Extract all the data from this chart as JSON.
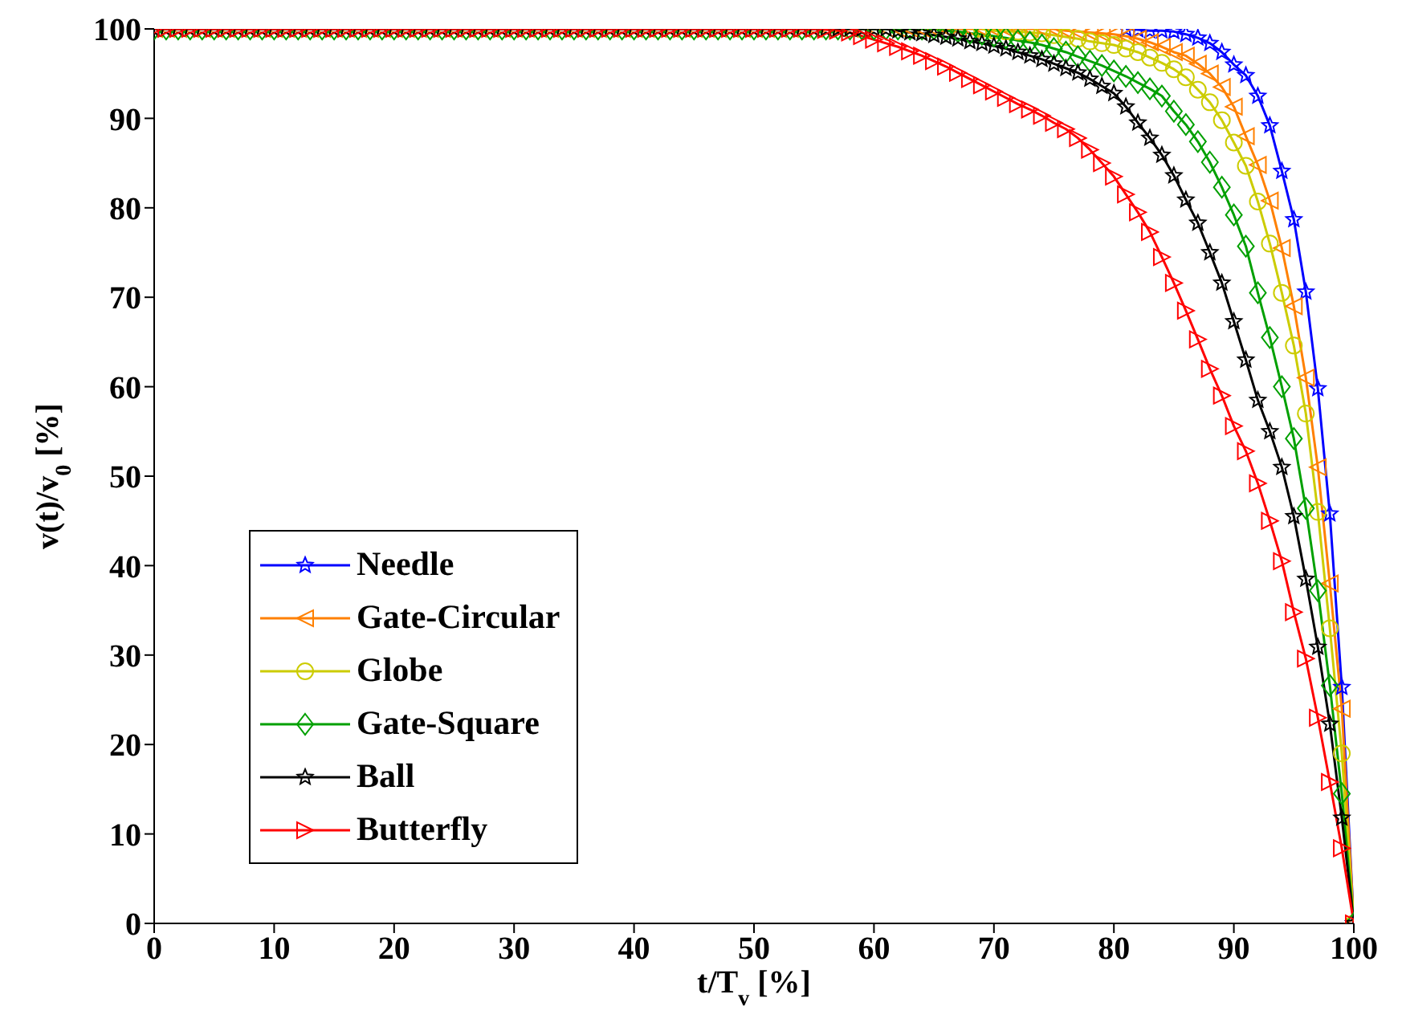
{
  "chart_data": {
    "type": "line",
    "xlabel": "t/T$_{v}$ [%]",
    "ylabel": "v(t)/v$_{0}$ [%]",
    "x": [
      0,
      1,
      2,
      3,
      4,
      5,
      6,
      7,
      8,
      9,
      10,
      11,
      12,
      13,
      14,
      15,
      16,
      17,
      18,
      19,
      20,
      21,
      22,
      23,
      24,
      25,
      26,
      27,
      28,
      29,
      30,
      31,
      32,
      33,
      34,
      35,
      36,
      37,
      38,
      39,
      40,
      41,
      42,
      43,
      44,
      45,
      46,
      47,
      48,
      49,
      50,
      51,
      52,
      53,
      54,
      55,
      56,
      57,
      58,
      59,
      60,
      61,
      62,
      63,
      64,
      65,
      66,
      67,
      68,
      69,
      70,
      71,
      72,
      73,
      74,
      75,
      76,
      77,
      78,
      79,
      80,
      81,
      82,
      83,
      84,
      85,
      86,
      87,
      88,
      89,
      90,
      91,
      92,
      93,
      94,
      95,
      96,
      97,
      98,
      99,
      100
    ],
    "xlim": [
      0,
      100
    ],
    "xticks": [
      0,
      10,
      20,
      30,
      40,
      50,
      60,
      70,
      80,
      90,
      100
    ],
    "ylim": [
      0,
      100
    ],
    "yticks": [
      0,
      10,
      20,
      30,
      40,
      50,
      60,
      70,
      80,
      90,
      100
    ],
    "grid": false,
    "legend": "bottom left",
    "line_style": "solid",
    "series": [
      {
        "name": "Needle",
        "color": "#0000ff",
        "marker": "star",
        "values": [
          null,
          null,
          null,
          null,
          null,
          null,
          null,
          null,
          null,
          null,
          null,
          null,
          null,
          null,
          null,
          null,
          null,
          null,
          null,
          null,
          null,
          null,
          null,
          null,
          null,
          null,
          null,
          null,
          null,
          null,
          null,
          null,
          null,
          null,
          null,
          null,
          null,
          null,
          null,
          null,
          null,
          null,
          null,
          null,
          null,
          null,
          null,
          null,
          null,
          null,
          null,
          null,
          null,
          null,
          null,
          null,
          null,
          null,
          null,
          null,
          null,
          null,
          null,
          null,
          null,
          null,
          null,
          null,
          null,
          null,
          null,
          null,
          null,
          null,
          null,
          null,
          null,
          null,
          null,
          null,
          null,
          100,
          99.9,
          99.8,
          99.8,
          99.7,
          99.4,
          99,
          98.4,
          97.4,
          96,
          94.8,
          92.5,
          89.2,
          84.1,
          78.7,
          70.6,
          59.8,
          45.8,
          26.4,
          0
        ]
      },
      {
        "name": "Gate-Circular",
        "color": "#ff8000",
        "marker": "triangle-left",
        "values": [
          100,
          100,
          100,
          100,
          100,
          100,
          100,
          100,
          100,
          100,
          100,
          100,
          100,
          100,
          100,
          100,
          100,
          100,
          100,
          100,
          100,
          100,
          100,
          100,
          100,
          100,
          100,
          100,
          100,
          100,
          100,
          100,
          100,
          100,
          100,
          100,
          100,
          100,
          100,
          100,
          100,
          100,
          100,
          100,
          100,
          100,
          100,
          100,
          100,
          100,
          100,
          100,
          100,
          100,
          100,
          100,
          100,
          100,
          100,
          100,
          100,
          100,
          100,
          100,
          100,
          100,
          100,
          100,
          100,
          100,
          100,
          100,
          100,
          100,
          100,
          100,
          99.8,
          99.7,
          99.6,
          99.5,
          99.4,
          99.2,
          98.9,
          98.5,
          98,
          97.4,
          97,
          96.1,
          95,
          93.5,
          91.3,
          88,
          84.8,
          80.8,
          75.5,
          69,
          61,
          51,
          38,
          24,
          0
        ]
      },
      {
        "name": "Globe",
        "color": "#cccc00",
        "marker": "circle",
        "values": [
          null,
          null,
          null,
          null,
          null,
          null,
          null,
          null,
          null,
          null,
          null,
          null,
          null,
          null,
          null,
          null,
          null,
          null,
          null,
          null,
          null,
          null,
          null,
          null,
          null,
          null,
          null,
          null,
          null,
          null,
          null,
          null,
          null,
          null,
          null,
          null,
          null,
          null,
          null,
          null,
          null,
          null,
          null,
          null,
          null,
          null,
          null,
          null,
          null,
          null,
          null,
          null,
          null,
          null,
          null,
          null,
          null,
          null,
          null,
          null,
          null,
          null,
          null,
          null,
          null,
          null,
          null,
          null,
          null,
          100,
          99.8,
          99.7,
          99.7,
          99.6,
          99.5,
          99.3,
          99.1,
          98.9,
          98.6,
          98.4,
          98.2,
          97.8,
          97.4,
          96.8,
          96.2,
          95.5,
          94.6,
          93.2,
          91.8,
          89.8,
          87.3,
          84.7,
          80.7,
          76,
          70.5,
          64.6,
          57,
          46,
          33,
          19,
          0
        ]
      },
      {
        "name": "Gate-Square",
        "color": "#00a000",
        "marker": "diamond",
        "values": [
          100,
          100,
          100,
          100,
          100,
          100,
          100,
          100,
          100,
          100,
          100,
          100,
          100,
          100,
          100,
          100,
          100,
          100,
          100,
          100,
          100,
          100,
          100,
          100,
          100,
          100,
          100,
          100,
          100,
          100,
          100,
          100,
          100,
          100,
          100,
          100,
          100,
          100,
          100,
          100,
          100,
          100,
          100,
          100,
          100,
          100,
          100,
          100,
          100,
          100,
          100,
          100,
          100,
          100,
          100,
          100,
          100,
          100,
          100,
          100,
          100,
          100,
          100,
          100,
          100,
          100,
          99.8,
          99.7,
          99.5,
          99.4,
          99.2,
          99,
          98.7,
          98.5,
          98.2,
          97.8,
          97.4,
          96.9,
          96.4,
          95.9,
          95.3,
          94.7,
          94,
          93.3,
          92.5,
          90.8,
          89.3,
          87.4,
          85.1,
          82.3,
          79.2,
          75.7,
          70.5,
          65.5,
          60,
          54.2,
          46.4,
          37.2,
          26.6,
          14.5,
          0
        ]
      },
      {
        "name": "Ball",
        "color": "#000000",
        "marker": "star",
        "values": [
          100,
          100,
          100,
          100,
          100,
          100,
          100,
          100,
          100,
          100,
          100,
          100,
          100,
          100,
          100,
          100,
          100,
          100,
          100,
          100,
          100,
          100,
          100,
          100,
          100,
          100,
          100,
          100,
          100,
          100,
          100,
          100,
          100,
          100,
          100,
          100,
          100,
          100,
          100,
          100,
          100,
          100,
          100,
          100,
          100,
          100,
          100,
          100,
          100,
          100,
          100,
          100,
          100,
          100,
          100,
          100,
          100,
          100,
          100,
          100,
          100,
          100,
          99.8,
          99.6,
          99.5,
          99.3,
          99.1,
          98.9,
          98.6,
          98.4,
          98.1,
          97.8,
          97.4,
          97,
          96.6,
          96.1,
          95.6,
          95.1,
          94.4,
          93.6,
          92.8,
          91.3,
          89.5,
          87.8,
          85.9,
          83.6,
          80.9,
          78.3,
          75,
          71.6,
          67.3,
          63,
          58.5,
          55,
          51,
          45.5,
          38.5,
          30.9,
          22.3,
          11.8,
          0
        ]
      },
      {
        "name": "Butterfly",
        "color": "#ff0000",
        "marker": "triangle-right",
        "values": [
          100,
          100,
          100,
          100,
          100,
          100,
          100,
          100,
          100,
          100,
          100,
          100,
          100,
          100,
          100,
          100,
          100,
          100,
          100,
          100,
          100,
          100,
          100,
          100,
          100,
          100,
          100,
          100,
          100,
          100,
          100,
          100,
          100,
          100,
          100,
          100,
          100,
          100,
          100,
          100,
          100,
          100,
          100,
          100,
          100,
          100,
          100,
          100,
          100,
          100,
          100,
          100,
          100,
          100,
          100,
          100,
          99.9,
          99.8,
          99.6,
          99.2,
          98.8,
          98.4,
          98,
          97.5,
          97,
          96.4,
          95.8,
          95.1,
          94.4,
          93.7,
          93,
          92.3,
          91.6,
          91,
          90.3,
          89.5,
          88.8,
          87.8,
          86.5,
          85,
          83.5,
          81.5,
          79.5,
          77.3,
          74.5,
          71.6,
          68.5,
          65.3,
          62,
          59,
          55.6,
          52.8,
          49.2,
          45,
          40.5,
          34.8,
          29.6,
          23,
          15.8,
          8.4,
          0
        ]
      }
    ]
  }
}
